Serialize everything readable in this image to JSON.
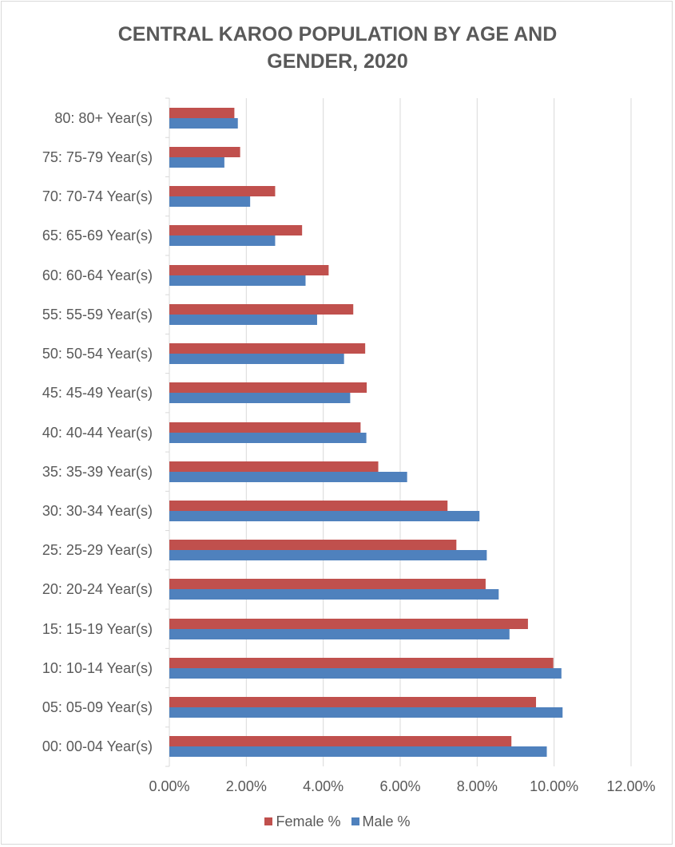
{
  "chart_data": {
    "type": "bar",
    "orientation": "horizontal",
    "title_lines": [
      "CENTRAL KAROO POPULATION BY AGE AND",
      "GENDER, 2020"
    ],
    "categories": [
      "00: 00-04 Year(s)",
      "05: 05-09 Year(s)",
      "10: 10-14 Year(s)",
      "15: 15-19 Year(s)",
      "20: 20-24 Year(s)",
      "25: 25-29 Year(s)",
      "30: 30-34 Year(s)",
      "35: 35-39 Year(s)",
      "40: 40-44 Year(s)",
      "45: 45-49 Year(s)",
      "50: 50-54 Year(s)",
      "55: 55-59 Year(s)",
      "60: 60-64 Year(s)",
      "65: 65-69 Year(s)",
      "70: 70-74 Year(s)",
      "75: 75-79 Year(s)",
      "80: 80+ Year(s)"
    ],
    "series": [
      {
        "name": "Female %",
        "color": "#c0504d",
        "values": [
          8.89,
          9.53,
          9.98,
          9.32,
          8.22,
          7.46,
          7.23,
          5.43,
          4.97,
          5.13,
          5.09,
          4.78,
          4.14,
          3.45,
          2.75,
          1.84,
          1.69
        ]
      },
      {
        "name": "Male %",
        "color": "#4f81bd",
        "values": [
          9.81,
          10.22,
          10.19,
          8.84,
          8.56,
          8.25,
          8.06,
          6.18,
          5.12,
          4.7,
          4.54,
          3.84,
          3.54,
          2.75,
          2.1,
          1.43,
          1.78
        ]
      }
    ],
    "x_ticks": [
      "0.00%",
      "2.00%",
      "4.00%",
      "6.00%",
      "8.00%",
      "10.00%",
      "12.00%"
    ],
    "xlim": [
      0,
      12
    ],
    "xlabel": "",
    "ylabel": "",
    "grid": "vertical",
    "legend_position": "bottom"
  }
}
